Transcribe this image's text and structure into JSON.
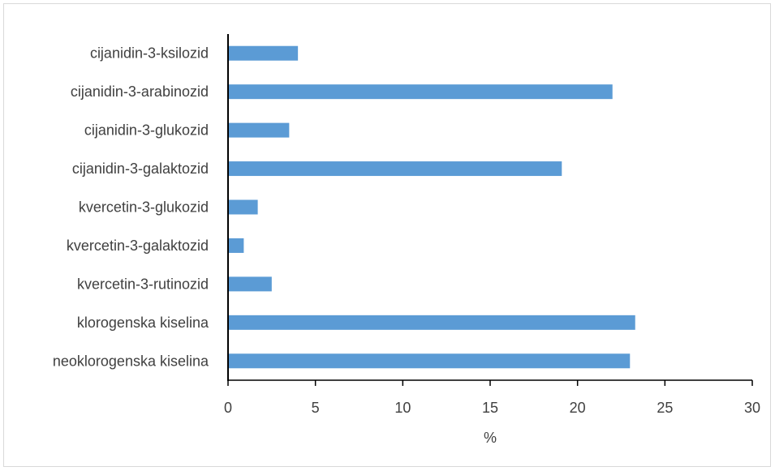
{
  "chart_data": {
    "type": "bar",
    "orientation": "horizontal",
    "categories": [
      "neoklorogenska kiselina",
      "klorogenska kiselina",
      "kvercetin-3-rutinozid",
      "kvercetin-3-galaktozid",
      "kvercetin-3-glukozid",
      "cijanidin-3-galaktozid",
      "cijanidin-3-glukozid",
      "cijanidin-3-arabinozid",
      "cijanidin-3-ksilozid"
    ],
    "values": [
      23.0,
      23.3,
      2.5,
      0.9,
      1.7,
      19.1,
      3.5,
      22.0,
      4.0
    ],
    "title": "",
    "xlabel": "%",
    "ylabel": "",
    "xlim": [
      0,
      30
    ],
    "xticks": [
      0,
      5,
      10,
      15,
      20,
      25,
      30
    ],
    "xtick_labels": [
      "0",
      "5",
      "10",
      "15",
      "20",
      "25",
      "30"
    ],
    "grid": false,
    "legend": "none",
    "bar_color": "#5b9bd5"
  }
}
